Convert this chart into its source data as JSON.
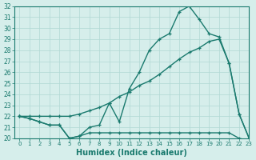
{
  "line_top_x": [
    0,
    1,
    2,
    3,
    4,
    5,
    6,
    7,
    8,
    9,
    10,
    11,
    12,
    13,
    14,
    15,
    16,
    17,
    18,
    19,
    20,
    21,
    22,
    23
  ],
  "line_top_y": [
    22,
    21.8,
    21.5,
    21.2,
    21.2,
    20.0,
    20.2,
    21.0,
    21.2,
    23.2,
    21.5,
    24.5,
    26.0,
    28.0,
    29.0,
    29.5,
    31.5,
    32.0,
    30.8,
    29.5,
    29.2,
    26.8,
    22.2,
    20.0
  ],
  "line_mid_x": [
    0,
    1,
    2,
    3,
    4,
    5,
    6,
    7,
    8,
    9,
    10,
    11,
    12,
    13,
    14,
    15,
    16,
    17,
    18,
    19,
    20,
    21,
    22,
    23
  ],
  "line_mid_y": [
    22,
    22,
    22,
    22,
    22,
    22,
    22.2,
    22.5,
    22.8,
    23.2,
    23.8,
    24.2,
    24.8,
    25.2,
    25.8,
    26.5,
    27.2,
    27.8,
    28.2,
    28.8,
    29.0,
    26.8,
    22.2,
    20.0
  ],
  "line_bot_x": [
    0,
    1,
    2,
    3,
    4,
    5,
    6,
    7,
    8,
    9,
    10,
    11,
    12,
    13,
    14,
    15,
    16,
    17,
    18,
    19,
    20,
    21,
    22,
    23
  ],
  "line_bot_y": [
    22,
    21.8,
    21.5,
    21.2,
    21.2,
    20.0,
    20.2,
    20.5,
    20.5,
    20.5,
    20.5,
    20.5,
    20.5,
    20.5,
    20.5,
    20.5,
    20.5,
    20.5,
    20.5,
    20.5,
    20.5,
    20.5,
    20.0,
    19.8
  ],
  "color": "#1a7a6e",
  "bg_color": "#d6eeeb",
  "grid_color": "#b0d8d4",
  "xlabel": "Humidex (Indice chaleur)",
  "ylim": [
    20,
    32
  ],
  "xlim": [
    -0.5,
    23
  ],
  "yticks": [
    20,
    21,
    22,
    23,
    24,
    25,
    26,
    27,
    28,
    29,
    30,
    31,
    32
  ],
  "xticks": [
    0,
    1,
    2,
    3,
    4,
    5,
    6,
    7,
    8,
    9,
    10,
    11,
    12,
    13,
    14,
    15,
    16,
    17,
    18,
    19,
    20,
    21,
    22,
    23
  ],
  "marker": "+",
  "markersize": 3.5,
  "linewidth": 1.0
}
